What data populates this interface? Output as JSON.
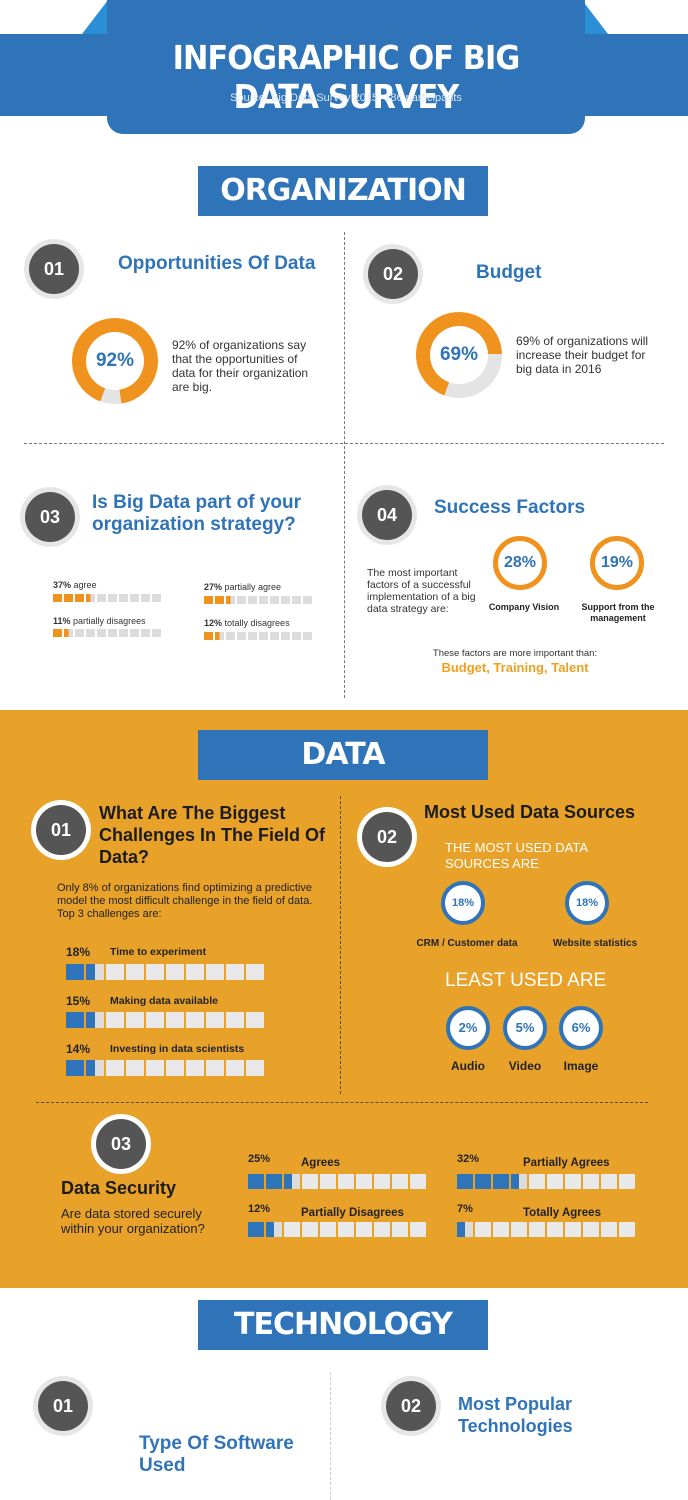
{
  "header": {
    "title": "INFOGRAPHIC OF BIG DATA SURVEY",
    "source": "Source: Big Data Survey 2015, 186 participants"
  },
  "organization": {
    "banner": "ORGANIZATION",
    "s01": {
      "num": "01",
      "title": "Opportunities Of Data",
      "percent": "92%",
      "value": 0.92,
      "text": "92% of organizations say that the opportunities of data for their organization are big."
    },
    "s02": {
      "num": "02",
      "title": "Budget",
      "percent": "69%",
      "value": 0.69,
      "text": "69% of organizations will increase their budget for big data in 2016"
    },
    "s03": {
      "num": "03",
      "title": "Is Big Data part of your organization strategy?",
      "items": [
        {
          "pct": "37%",
          "label": "agree",
          "value": 0.37
        },
        {
          "pct": "27%",
          "label": "partially agree",
          "value": 0.27
        },
        {
          "pct": "11%",
          "label": "partially disagrees",
          "value": 0.11
        },
        {
          "pct": "12%",
          "label": "totally disagrees",
          "value": 0.12
        }
      ]
    },
    "s04": {
      "num": "04",
      "title": "Success Factors",
      "text": "The most important factors of a successful implementation of a big data strategy are:",
      "factors": [
        {
          "pct": "28%",
          "label": "Company Vision"
        },
        {
          "pct": "19%",
          "label": "Support from the management"
        }
      ],
      "note": "These factors are more important than:",
      "highlight": "Budget, Training, Talent"
    }
  },
  "data": {
    "banner": "DATA",
    "s01": {
      "num": "01",
      "title": "What Are The Biggest Challenges In The Field Of Data?",
      "text": "Only 8% of organizations find optimizing a predictive model the most difficult challenge in the field of data. Top 3 challenges are:",
      "items": [
        {
          "pct": "18%",
          "label": "Time to experiment",
          "value": 0.18
        },
        {
          "pct": "15%",
          "label": "Making data available",
          "value": 0.15
        },
        {
          "pct": "14%",
          "label": "Investing in data scientists",
          "value": 0.14
        }
      ]
    },
    "s02": {
      "num": "02",
      "title": "Most Used Data Sources",
      "most_heading": "THE MOST USED DATA SOURCES ARE",
      "most": [
        {
          "pct": "18%",
          "label": "CRM / Customer data"
        },
        {
          "pct": "18%",
          "label": "Website statistics"
        }
      ],
      "least_heading": "LEAST USED ARE",
      "least": [
        {
          "pct": "2%",
          "label": "Audio"
        },
        {
          "pct": "5%",
          "label": "Video"
        },
        {
          "pct": "6%",
          "label": "Image"
        }
      ]
    },
    "s03": {
      "num": "03",
      "title": "Data Security",
      "text": "Are data stored securely within your organization?",
      "items": [
        {
          "pct": "25%",
          "label": "Agrees",
          "value": 0.25
        },
        {
          "pct": "32%",
          "label": "Partially Agrees",
          "value": 0.32
        },
        {
          "pct": "12%",
          "label": "Partially Disagrees",
          "value": 0.12
        },
        {
          "pct": "7%",
          "label": "Totally Agrees",
          "value": 0.07
        }
      ]
    }
  },
  "technology": {
    "banner": "TECHNOLOGY",
    "s01": {
      "num": "01",
      "title": "Type Of Software Used"
    },
    "s02": {
      "num": "02",
      "title": "Most Popular Technologies"
    }
  },
  "colors": {
    "blue": "#2f74b8",
    "orange": "#f0921e",
    "section_orange": "#e8a22a",
    "grey": "#dcdcdc"
  }
}
